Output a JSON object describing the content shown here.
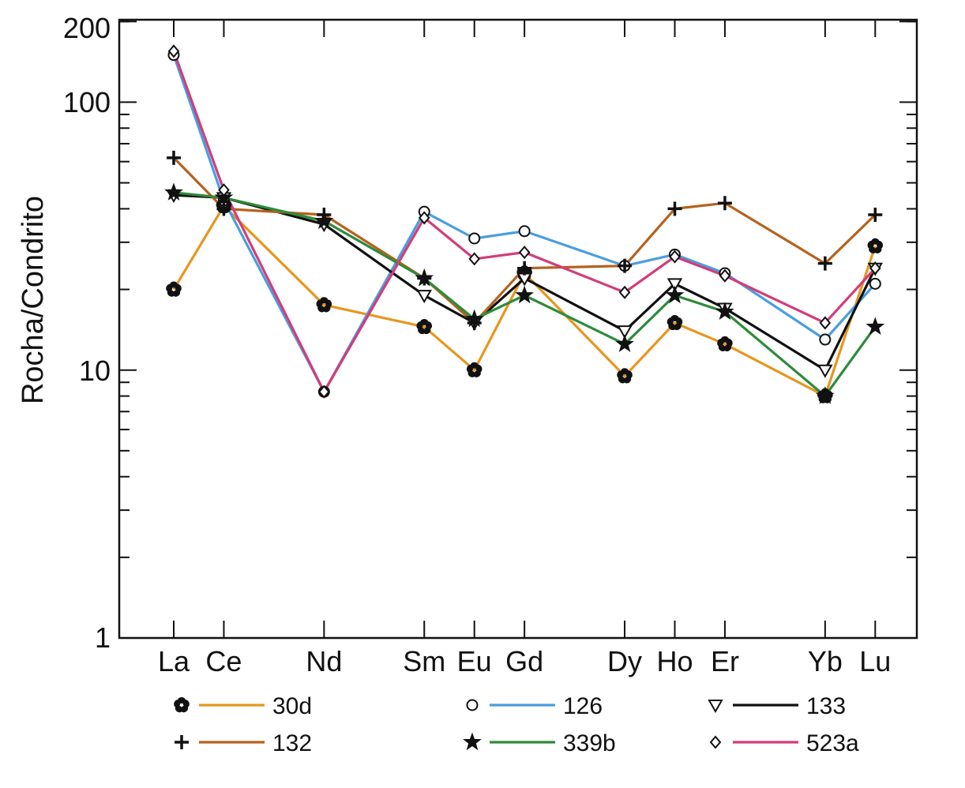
{
  "chart_data": {
    "type": "line",
    "title": "",
    "xlabel": "",
    "ylabel": "Rocha/Condrito",
    "yscale": "log",
    "ylim": [
      1,
      200
    ],
    "ytick_labels": [
      "1",
      "10",
      "100",
      "200"
    ],
    "grid": false,
    "legend_position": "bottom",
    "categories": [
      "La",
      "Ce",
      "Nd",
      "Sm",
      "Eu",
      "Gd",
      "Dy",
      "Ho",
      "Er",
      "Yb",
      "Lu"
    ],
    "category_positions": [
      57,
      58,
      60,
      62,
      63,
      64,
      66,
      67,
      68,
      70,
      71
    ],
    "series": [
      {
        "name": "30d",
        "color": "#e8961e",
        "marker": "asterisk",
        "values": [
          20,
          41,
          17.5,
          14.5,
          10,
          23,
          9.5,
          15,
          12.5,
          8,
          29
        ]
      },
      {
        "name": "126",
        "color": "#4a9ee0",
        "marker": "circle",
        "values": [
          150,
          43,
          8.3,
          39,
          31,
          33,
          24.5,
          27,
          23,
          13,
          21
        ]
      },
      {
        "name": "133",
        "color": "#111111",
        "marker": "triangle-down",
        "values": [
          45,
          44,
          35,
          19,
          15,
          22,
          14,
          21,
          17,
          10,
          24
        ]
      },
      {
        "name": "132",
        "color": "#b5621e",
        "marker": "plus",
        "values": [
          62,
          40,
          38,
          22,
          15,
          24,
          24.5,
          40,
          42,
          25,
          38
        ]
      },
      {
        "name": "339b",
        "color": "#2e8b3a",
        "marker": "star",
        "values": [
          46,
          44,
          36,
          22,
          15.5,
          19,
          12.5,
          19,
          16.5,
          8,
          14.5
        ]
      },
      {
        "name": "523a",
        "color": "#d43c7a",
        "marker": "diamond",
        "values": [
          155,
          47,
          8.3,
          37,
          26,
          27.5,
          19.5,
          26.5,
          22.5,
          15,
          24
        ]
      }
    ]
  }
}
